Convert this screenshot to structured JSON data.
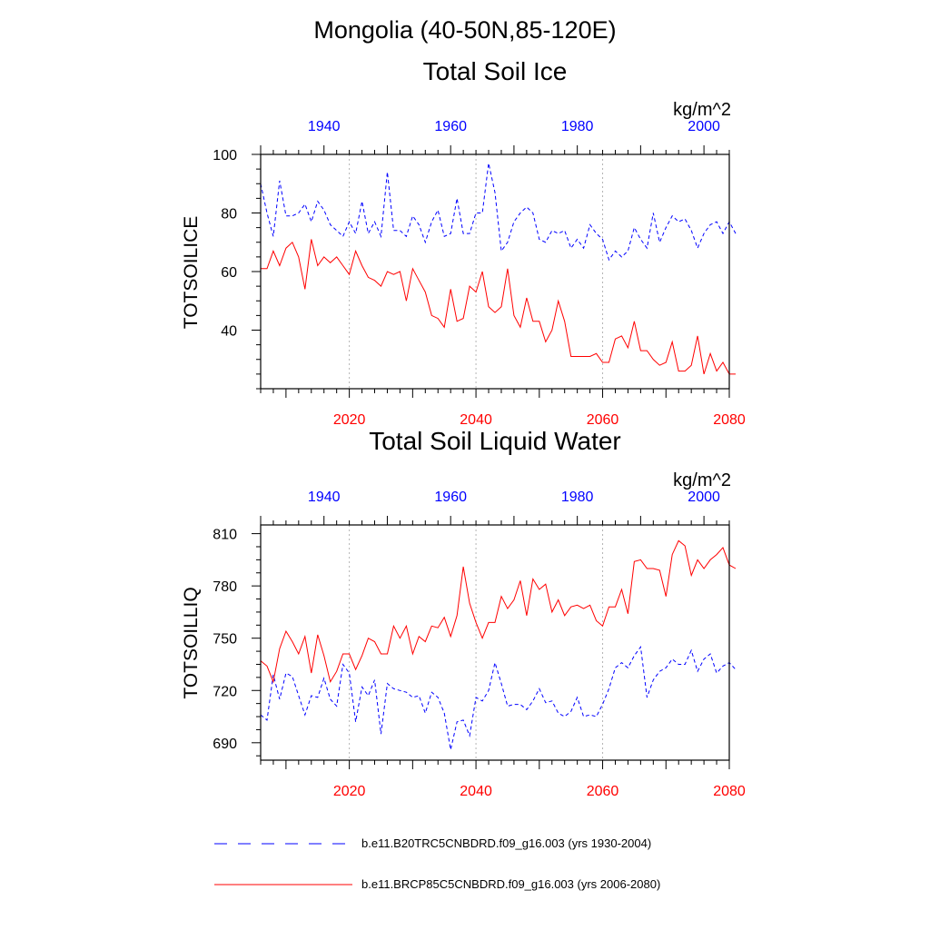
{
  "figure_title": "Mongolia (40-50N,85-120E)",
  "legend": {
    "historical_label": "b.e11.B20TRC5CNBDRD.f09_g16.003 (yrs 1930-2004)",
    "future_label": "b.e11.BRCP85C5CNBDRD.f09_g16.003 (yrs 2006-2080)"
  },
  "colors": {
    "historical": "#0000ff",
    "future": "#ff0000",
    "axis": "#000000",
    "grid": "#b4b4b4"
  },
  "chart_data": [
    {
      "type": "line",
      "title": "Total Soil Ice",
      "ylabel": "TOTSOILICE",
      "units": "kg/m^2",
      "ylim": [
        20,
        100
      ],
      "yticks": [
        40,
        60,
        80,
        100
      ],
      "x_bottom": {
        "range": [
          2006,
          2080
        ],
        "ticks": [
          2020,
          2040,
          2060,
          2080
        ]
      },
      "x_top": {
        "range": [
          1930,
          2004
        ],
        "ticks": [
          1940,
          1960,
          1980,
          2000
        ]
      },
      "grid": "vertical dotted at bottom ticks",
      "series": [
        {
          "axis": "top",
          "style": "dashed",
          "x_start": 1930,
          "values": [
            90,
            80,
            72,
            91,
            79,
            79,
            80,
            83,
            77,
            84,
            81,
            76,
            74,
            72,
            77,
            73,
            84,
            73,
            77,
            72,
            94,
            74,
            74,
            72,
            79,
            76,
            70,
            77,
            81,
            72,
            73,
            85,
            73,
            73,
            80,
            80,
            97,
            87,
            67,
            70,
            77,
            80,
            82,
            80,
            71,
            70,
            74,
            73,
            74,
            68,
            71,
            68,
            76,
            73,
            71,
            64,
            67,
            65,
            67,
            75,
            71,
            68,
            80,
            70,
            75,
            79,
            77,
            78,
            74,
            68,
            73,
            76,
            77,
            73,
            77,
            73
          ]
        },
        {
          "axis": "bottom",
          "style": "solid",
          "x_start": 2006,
          "values": [
            61,
            61,
            67,
            62,
            68,
            70,
            65,
            54,
            71,
            62,
            65,
            63,
            65,
            62,
            59,
            67,
            62,
            58,
            57,
            55,
            60,
            59,
            60,
            50,
            61,
            57,
            53,
            45,
            44,
            41,
            54,
            43,
            44,
            55,
            53,
            60,
            48,
            46,
            48,
            61,
            45,
            41,
            51,
            43,
            43,
            36,
            40,
            50,
            43,
            31,
            31,
            31,
            31,
            32,
            29,
            29,
            37,
            38,
            34,
            43,
            33,
            33,
            30,
            28,
            29,
            36,
            26,
            26,
            28,
            38,
            25,
            32,
            26,
            29,
            25,
            25
          ]
        }
      ]
    },
    {
      "type": "line",
      "title": "Total Soil Liquid Water",
      "ylabel": "TOTSOILLIQ",
      "units": "kg/m^2",
      "ylim": [
        680,
        815
      ],
      "yticks": [
        690,
        720,
        750,
        780,
        810
      ],
      "x_bottom": {
        "range": [
          2006,
          2080
        ],
        "ticks": [
          2020,
          2040,
          2060,
          2080
        ]
      },
      "x_top": {
        "range": [
          1930,
          2004
        ],
        "ticks": [
          1940,
          1960,
          1980,
          2000
        ]
      },
      "grid": "vertical dotted at bottom ticks",
      "series": [
        {
          "axis": "top",
          "style": "dashed",
          "x_start": 1930,
          "values": [
            706,
            703,
            729,
            715,
            730,
            728,
            717,
            706,
            717,
            716,
            727,
            715,
            711,
            735,
            730,
            702,
            722,
            717,
            726,
            695,
            724,
            721,
            720,
            719,
            716,
            717,
            707,
            719,
            716,
            707,
            686,
            702,
            703,
            694,
            716,
            714,
            720,
            736,
            724,
            711,
            712,
            712,
            709,
            714,
            721,
            713,
            714,
            707,
            705,
            708,
            716,
            705,
            706,
            705,
            712,
            721,
            733,
            736,
            733,
            740,
            745,
            716,
            726,
            731,
            733,
            738,
            735,
            735,
            743,
            731,
            738,
            741,
            730,
            734,
            736,
            732
          ]
        },
        {
          "axis": "bottom",
          "style": "solid",
          "x_start": 2006,
          "values": [
            737,
            734,
            725,
            744,
            754,
            748,
            741,
            751,
            730,
            752,
            740,
            725,
            731,
            741,
            741,
            732,
            740,
            750,
            748,
            741,
            741,
            757,
            750,
            757,
            741,
            751,
            748,
            757,
            756,
            762,
            751,
            763,
            791,
            770,
            759,
            750,
            759,
            759,
            774,
            767,
            772,
            783,
            763,
            784,
            778,
            781,
            765,
            772,
            763,
            768,
            769,
            767,
            769,
            760,
            757,
            768,
            768,
            778,
            764,
            794,
            795,
            790,
            790,
            789,
            774,
            798,
            806,
            803,
            786,
            795,
            790,
            795,
            798,
            802,
            792,
            790
          ]
        }
      ]
    }
  ]
}
